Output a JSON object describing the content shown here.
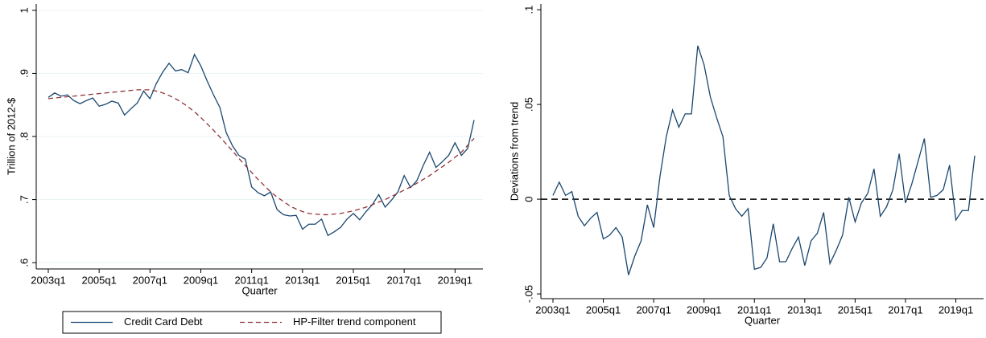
{
  "chart_data": [
    {
      "type": "line",
      "y_label": "Trillion of 2012-$",
      "x_label": "Quarter",
      "categories": [
        "2003q1",
        null,
        null,
        null,
        null,
        null,
        null,
        null,
        "2005q1",
        null,
        null,
        null,
        null,
        null,
        null,
        null,
        "2007q1",
        null,
        null,
        null,
        null,
        null,
        null,
        null,
        "2009q1",
        null,
        null,
        null,
        null,
        null,
        null,
        null,
        "2011q1",
        null,
        null,
        null,
        null,
        null,
        null,
        null,
        "2013q1",
        null,
        null,
        null,
        null,
        null,
        null,
        null,
        "2015q1",
        null,
        null,
        null,
        null,
        null,
        null,
        null,
        "2017q1",
        null,
        null,
        null,
        null,
        null,
        null,
        null,
        "2019q1",
        null,
        null,
        null
      ],
      "series": [
        {
          "name": "Credit Card Debt",
          "color": "#1a476f",
          "dashed": false,
          "values": [
            0.862,
            0.869,
            0.864,
            0.866,
            0.857,
            0.852,
            0.857,
            0.861,
            0.848,
            0.851,
            0.856,
            0.853,
            0.834,
            0.844,
            0.853,
            0.872,
            0.86,
            0.884,
            0.902,
            0.916,
            0.904,
            0.906,
            0.901,
            0.93,
            0.912,
            0.888,
            0.866,
            0.846,
            0.806,
            0.785,
            0.77,
            0.764,
            0.72,
            0.711,
            0.706,
            0.712,
            0.684,
            0.676,
            0.674,
            0.675,
            0.653,
            0.661,
            0.661,
            0.669,
            0.643,
            0.649,
            0.656,
            0.669,
            0.678,
            0.668,
            0.681,
            0.692,
            0.708,
            0.688,
            0.699,
            0.712,
            0.738,
            0.719,
            0.73,
            0.754,
            0.775,
            0.751,
            0.76,
            0.77,
            0.79,
            0.77,
            0.781,
            0.826
          ]
        },
        {
          "name": "HP-Filter trend component",
          "color": "#90353b",
          "dashed": true,
          "values": [
            0.86,
            0.861,
            0.862,
            0.863,
            0.864,
            0.865,
            0.866,
            0.867,
            0.868,
            0.869,
            0.87,
            0.871,
            0.872,
            0.873,
            0.874,
            0.874,
            0.874,
            0.872,
            0.869,
            0.865,
            0.86,
            0.854,
            0.847,
            0.839,
            0.83,
            0.82,
            0.81,
            0.799,
            0.788,
            0.777,
            0.765,
            0.754,
            0.743,
            0.732,
            0.722,
            0.712,
            0.704,
            0.697,
            0.69,
            0.685,
            0.681,
            0.678,
            0.677,
            0.676,
            0.676,
            0.677,
            0.678,
            0.68,
            0.682,
            0.685,
            0.688,
            0.692,
            0.696,
            0.7,
            0.705,
            0.71,
            0.715,
            0.72,
            0.726,
            0.732,
            0.738,
            0.745,
            0.752,
            0.759,
            0.767,
            0.775,
            0.786,
            0.797
          ]
        }
      ],
      "ylim": [
        0.59,
        1.01
      ],
      "yticks": [
        {
          "value": 0.6,
          "label": ".6"
        },
        {
          "value": 0.7,
          "label": ".7"
        },
        {
          "value": 0.8,
          "label": ".8"
        },
        {
          "value": 0.9,
          "label": ".9"
        },
        1
      ],
      "grid": true,
      "legend": "bottom"
    },
    {
      "type": "line",
      "y_label": "Deviations from trend",
      "x_label": "Quarter",
      "categories": [
        "2003q1",
        null,
        null,
        null,
        null,
        null,
        null,
        null,
        "2005q1",
        null,
        null,
        null,
        null,
        null,
        null,
        null,
        "2007q1",
        null,
        null,
        null,
        null,
        null,
        null,
        null,
        "2009q1",
        null,
        null,
        null,
        null,
        null,
        null,
        null,
        "2011q1",
        null,
        null,
        null,
        null,
        null,
        null,
        null,
        "2013q1",
        null,
        null,
        null,
        null,
        null,
        null,
        null,
        "2015q1",
        null,
        null,
        null,
        null,
        null,
        null,
        null,
        "2017q1",
        null,
        null,
        null,
        null,
        null,
        null,
        null,
        "2019q1",
        null,
        null,
        null
      ],
      "color": "#1a476f",
      "values": [
        0.002,
        0.009,
        0.002,
        0.004,
        -0.009,
        -0.014,
        -0.01,
        -0.007,
        -0.021,
        -0.019,
        -0.015,
        -0.02,
        -0.04,
        -0.03,
        -0.022,
        -0.003,
        -0.015,
        0.012,
        0.033,
        0.047,
        0.038,
        0.045,
        0.045,
        0.081,
        0.071,
        0.054,
        0.043,
        0.033,
        0.002,
        -0.005,
        -0.009,
        -0.005,
        -0.037,
        -0.036,
        -0.031,
        -0.013,
        -0.033,
        -0.033,
        -0.026,
        -0.02,
        -0.035,
        -0.022,
        -0.018,
        -0.007,
        -0.034,
        -0.027,
        -0.019,
        0.001,
        -0.012,
        -0.002,
        0.003,
        0.016,
        -0.009,
        -0.004,
        0.005,
        0.024,
        -0.002,
        0.008,
        0.02,
        0.032,
        0.001,
        0.002,
        0.005,
        0.018,
        -0.011,
        -0.006,
        -0.006,
        0.023
      ],
      "ylim": [
        -0.0525,
        0.103
      ],
      "yticks": [
        {
          "value": -0.05,
          "label": "-.05"
        },
        0,
        {
          "value": 0.05,
          "label": ".05"
        },
        {
          "value": 0.1,
          "label": ".1"
        }
      ],
      "grid": false,
      "reference_line": 0
    }
  ]
}
